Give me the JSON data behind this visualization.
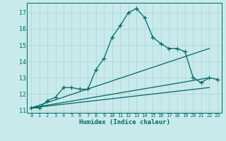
{
  "xlabel": "Humidex (Indice chaleur)",
  "bg_color": "#c8eaea",
  "grid_color": "#b0d8d8",
  "line_color": "#006666",
  "xlim": [
    -0.5,
    23.5
  ],
  "ylim": [
    10.85,
    17.6
  ],
  "yticks": [
    11,
    12,
    13,
    14,
    15,
    16,
    17
  ],
  "xticks": [
    0,
    1,
    2,
    3,
    4,
    5,
    6,
    7,
    8,
    9,
    10,
    11,
    12,
    13,
    14,
    15,
    16,
    17,
    18,
    19,
    20,
    21,
    22,
    23
  ],
  "series1_x": [
    0,
    1,
    2,
    3,
    4,
    5,
    6,
    7,
    8,
    9,
    10,
    11,
    12,
    13,
    14,
    15,
    16,
    17,
    18,
    19,
    20,
    21,
    22,
    23
  ],
  "series1_y": [
    11.15,
    11.15,
    11.6,
    11.8,
    12.4,
    12.4,
    12.3,
    12.3,
    13.5,
    14.2,
    15.5,
    16.2,
    17.0,
    17.25,
    16.7,
    15.5,
    15.1,
    14.8,
    14.8,
    14.6,
    13.0,
    12.7,
    13.0,
    12.9
  ],
  "series2_x": [
    0,
    22
  ],
  "series2_y": [
    11.15,
    13.0
  ],
  "series3_x": [
    0,
    22
  ],
  "series3_y": [
    11.15,
    14.8
  ],
  "series4_x": [
    0,
    22
  ],
  "series4_y": [
    11.15,
    12.4
  ]
}
